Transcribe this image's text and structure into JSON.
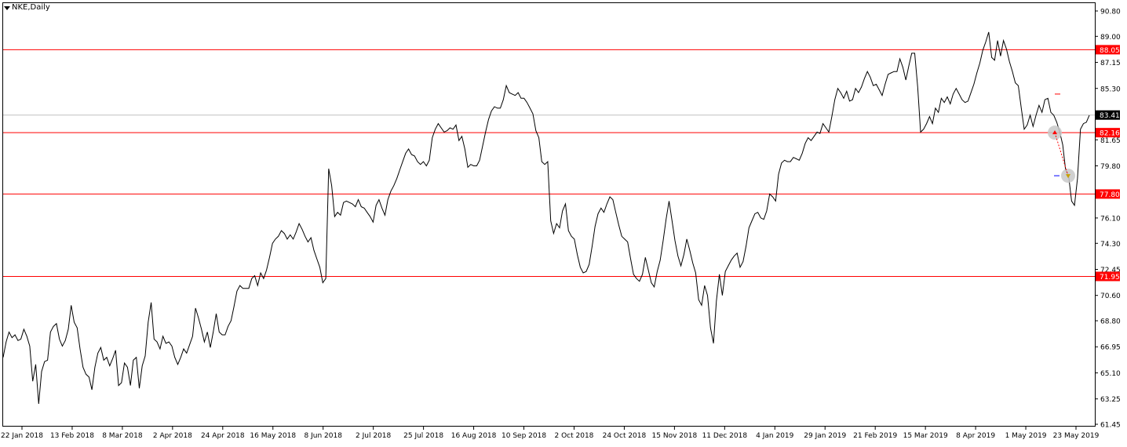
{
  "window": {
    "symbol": "NKE",
    "timeframe": "Daily",
    "title": "NKE,Daily"
  },
  "colors": {
    "background": "#ffffff",
    "price_line": "#000000",
    "level_line": "#ff0000",
    "current_price_line": "#c0c0c0",
    "level_label_bg": "#ff0000",
    "current_label_bg": "#000000"
  },
  "chart_data": {
    "type": "line",
    "title": "NKE,Daily",
    "xlabel": "",
    "ylabel": "",
    "ylim": [
      61.45,
      91.0
    ],
    "grid": false,
    "x_tick_labels": [
      "22 Jan 2018",
      "13 Feb 2018",
      "8 Mar 2018",
      "2 Apr 2018",
      "24 Apr 2018",
      "16 May 2018",
      "8 Jun 2018",
      "2 Jul 2018",
      "25 Jul 2018",
      "16 Aug 2018",
      "10 Sep 2018",
      "2 Oct 2018",
      "24 Oct 2018",
      "15 Nov 2018",
      "11 Dec 2018",
      "4 Jan 2019",
      "29 Jan 2019",
      "21 Feb 2019",
      "15 Mar 2019",
      "8 Apr 2019",
      "1 May 2019",
      "23 May 2019"
    ],
    "y_tick_labels": [
      "90.80",
      "89.00",
      "87.15",
      "85.30",
      "83.45",
      "81.65",
      "79.80",
      "77.95",
      "76.10",
      "74.30",
      "72.45",
      "70.60",
      "68.80",
      "66.95",
      "65.10",
      "63.25",
      "61.45"
    ],
    "y_tick_values": [
      90.8,
      89.0,
      87.15,
      85.3,
      83.45,
      81.65,
      79.8,
      77.95,
      76.1,
      74.3,
      72.45,
      70.6,
      68.8,
      66.95,
      65.1,
      63.25,
      61.45
    ],
    "horizontal_levels": [
      {
        "value": 88.05,
        "label": "88.05",
        "color": "#ff0000"
      },
      {
        "value": 82.16,
        "label": "82.16",
        "color": "#ff0000"
      },
      {
        "value": 77.8,
        "label": "77.80",
        "color": "#ff0000"
      },
      {
        "value": 71.95,
        "label": "71.95",
        "color": "#ff0000"
      }
    ],
    "current_price": {
      "value": 83.41,
      "label": "83.41"
    },
    "series": [
      {
        "values": [
          66.2,
          67.3,
          68.0,
          67.6,
          67.8,
          67.4,
          67.5,
          68.2,
          67.7,
          67.0,
          64.5,
          65.7,
          62.9,
          65.2,
          65.9,
          66.0,
          68.0,
          68.4,
          68.6,
          67.5,
          67.0,
          67.4,
          68.2,
          69.9,
          68.7,
          68.3,
          66.8,
          65.5,
          65.0,
          64.8,
          63.9,
          65.5,
          66.5,
          66.9,
          66.0,
          66.2,
          65.6,
          66.1,
          66.7,
          64.2,
          64.4,
          65.8,
          65.5,
          64.2,
          66.0,
          66.2,
          64.0,
          65.6,
          66.3,
          68.7,
          70.1,
          67.5,
          67.3,
          66.8,
          67.7,
          67.2,
          67.3,
          67.0,
          66.2,
          65.7,
          66.2,
          66.8,
          66.5,
          67.1,
          67.7,
          69.7,
          69.0,
          68.2,
          67.3,
          68.0,
          66.9,
          68.0,
          69.3,
          68.0,
          67.8,
          67.8,
          68.4,
          68.8,
          69.8,
          70.9,
          71.3,
          71.1,
          71.1,
          71.1,
          71.8,
          72.0,
          71.3,
          72.2,
          71.8,
          72.4,
          73.3,
          74.3,
          74.6,
          74.8,
          75.2,
          75.0,
          74.6,
          74.9,
          74.6,
          75.1,
          75.7,
          75.3,
          74.8,
          74.4,
          74.7,
          73.8,
          73.2,
          72.6,
          71.5,
          71.8,
          79.6,
          78.4,
          76.2,
          76.5,
          76.3,
          77.2,
          77.3,
          77.2,
          77.1,
          76.9,
          77.4,
          76.9,
          76.8,
          76.5,
          76.2,
          75.8,
          77.0,
          77.4,
          76.8,
          76.3,
          77.4,
          78.0,
          78.4,
          78.9,
          79.5,
          80.1,
          80.7,
          81.0,
          80.6,
          80.5,
          80.1,
          79.9,
          80.1,
          79.8,
          80.2,
          81.8,
          82.4,
          82.8,
          82.5,
          82.2,
          82.3,
          82.5,
          82.4,
          82.7,
          81.6,
          81.9,
          81.0,
          79.7,
          79.9,
          79.8,
          79.8,
          80.2,
          81.2,
          82.2,
          83.1,
          83.7,
          84.0,
          83.9,
          83.9,
          84.5,
          85.5,
          85.0,
          84.9,
          84.8,
          85.0,
          84.6,
          84.6,
          84.3,
          83.9,
          83.5,
          82.3,
          81.8,
          80.1,
          79.9,
          80.1,
          75.9,
          75.0,
          75.7,
          75.4,
          76.6,
          77.1,
          75.2,
          74.8,
          74.6,
          73.5,
          72.6,
          72.2,
          72.3,
          72.8,
          74.1,
          75.5,
          76.4,
          76.8,
          76.5,
          77.1,
          77.6,
          77.4,
          76.5,
          75.6,
          74.8,
          74.6,
          74.4,
          73.2,
          72.1,
          71.8,
          71.6,
          72.1,
          73.3,
          72.4,
          71.5,
          71.2,
          72.3,
          73.1,
          74.5,
          76.0,
          77.3,
          75.9,
          74.5,
          73.4,
          72.7,
          73.5,
          74.6,
          73.8,
          72.9,
          72.2,
          70.3,
          69.9,
          71.3,
          70.6,
          68.3,
          67.2,
          70.2,
          72.1,
          70.6,
          72.3,
          72.7,
          73.1,
          73.4,
          73.6,
          72.6,
          73.0,
          74.1,
          75.4,
          75.9,
          76.4,
          76.5,
          76.1,
          76.0,
          76.6,
          77.8,
          77.6,
          77.3,
          79.2,
          80.0,
          80.2,
          80.1,
          80.1,
          80.4,
          80.3,
          80.2,
          80.7,
          81.4,
          81.8,
          81.6,
          81.9,
          82.2,
          82.1,
          82.8,
          82.5,
          82.2,
          83.3,
          84.5,
          85.3,
          85.0,
          84.6,
          85.1,
          84.4,
          84.5,
          85.3,
          85.0,
          85.4,
          86.0,
          86.5,
          86.1,
          85.5,
          85.6,
          85.2,
          84.8,
          85.6,
          86.3,
          86.4,
          86.5,
          86.5,
          87.4,
          86.8,
          85.9,
          86.9,
          87.8,
          87.8,
          85.4,
          82.2,
          82.4,
          82.8,
          83.3,
          82.8,
          83.9,
          83.6,
          84.6,
          84.3,
          84.7,
          84.2,
          84.9,
          85.3,
          84.9,
          84.5,
          84.3,
          84.4,
          85.0,
          85.6,
          86.4,
          87.1,
          88.0,
          88.6,
          89.3,
          87.5,
          87.3,
          88.7,
          87.6,
          88.7,
          88.1,
          87.2,
          86.5,
          85.7,
          85.5,
          83.9,
          82.4,
          82.7,
          83.4,
          82.6,
          83.4,
          84.1,
          83.6,
          84.5,
          84.6,
          83.6,
          83.4,
          82.9,
          82.2,
          81.3,
          79.5,
          79.1,
          77.3,
          77.0,
          78.9,
          82.4,
          82.8,
          82.9,
          83.4
        ]
      }
    ],
    "annotations": [
      {
        "type": "marker",
        "value": 82.16,
        "description": "grey circle with red arrow"
      },
      {
        "type": "marker",
        "value": 79.1,
        "description": "grey circle with arrow, blue dash"
      },
      {
        "type": "dash",
        "value": 84.9,
        "color": "#ff0000"
      },
      {
        "type": "dash",
        "value": 79.1,
        "color": "#0000ff"
      }
    ]
  }
}
